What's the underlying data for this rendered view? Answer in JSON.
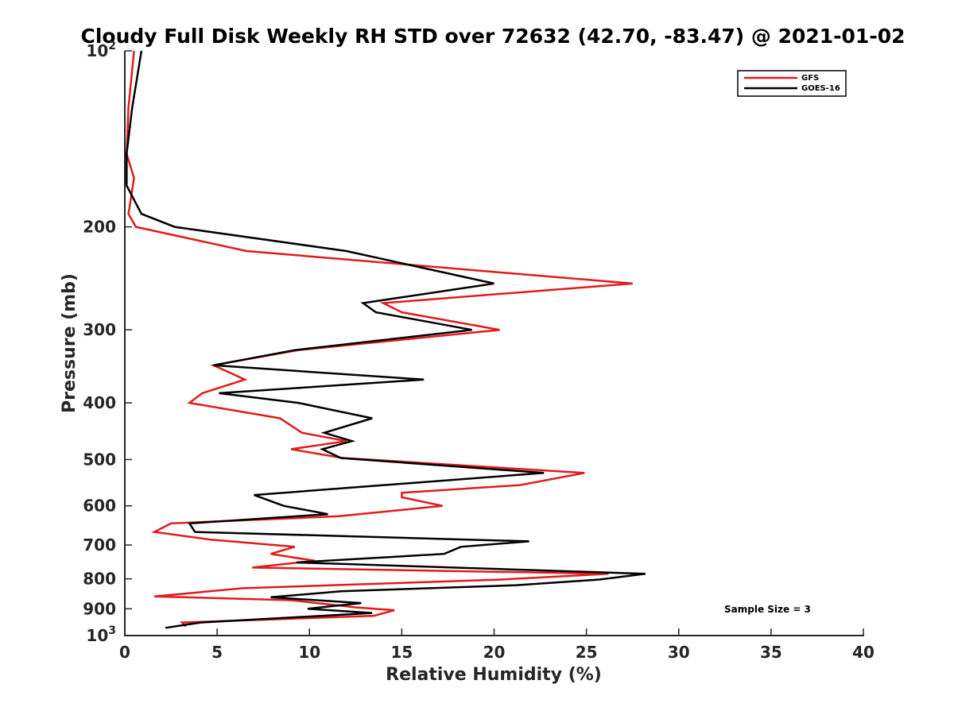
{
  "chart_data": {
    "type": "line",
    "title": "Cloudy Full Disk Weekly RH STD over 72632 (42.70, -83.47) @ 2021-01-02",
    "xlabel": "Relative Humidity (%)",
    "ylabel": "Pressure (mb)",
    "xlim": [
      0,
      40
    ],
    "ylim": [
      100,
      1000
    ],
    "y_scale": "log",
    "y_reversed": true,
    "grid": false,
    "legend_position": "top-right",
    "x_ticks": [
      "0",
      "5",
      "10",
      "15",
      "20",
      "25",
      "30",
      "35",
      "40"
    ],
    "y_ticks": [
      {
        "value": 100,
        "base": "10",
        "exp": "2"
      },
      {
        "value": 200,
        "base": "200",
        "exp": ""
      },
      {
        "value": 300,
        "base": "300",
        "exp": ""
      },
      {
        "value": 400,
        "base": "400",
        "exp": ""
      },
      {
        "value": 500,
        "base": "500",
        "exp": ""
      },
      {
        "value": 600,
        "base": "600",
        "exp": ""
      },
      {
        "value": 700,
        "base": "700",
        "exp": ""
      },
      {
        "value": 800,
        "base": "800",
        "exp": ""
      },
      {
        "value": 900,
        "base": "900",
        "exp": ""
      },
      {
        "value": 1000,
        "base": "10",
        "exp": "3"
      }
    ],
    "series": [
      {
        "name": "GFS",
        "color": "#e31a1c",
        "points": [
          [
            0.5,
            100
          ],
          [
            0.2,
            125
          ],
          [
            0.1,
            150
          ],
          [
            0.5,
            165
          ],
          [
            0.2,
            190
          ],
          [
            0.6,
            200
          ],
          [
            6.6,
            220
          ],
          [
            27.5,
            250
          ],
          [
            14.0,
            270
          ],
          [
            15.0,
            280
          ],
          [
            20.3,
            300
          ],
          [
            9.4,
            325
          ],
          [
            4.8,
            345
          ],
          [
            6.5,
            365
          ],
          [
            4.2,
            385
          ],
          [
            3.5,
            400
          ],
          [
            8.4,
            425
          ],
          [
            9.6,
            450
          ],
          [
            12.0,
            465
          ],
          [
            9.0,
            480
          ],
          [
            11.8,
            497
          ],
          [
            24.9,
            527
          ],
          [
            21.4,
            553
          ],
          [
            15.0,
            570
          ],
          [
            15.0,
            580
          ],
          [
            17.2,
            600
          ],
          [
            11.6,
            625
          ],
          [
            2.5,
            643
          ],
          [
            1.6,
            665
          ],
          [
            4.6,
            685
          ],
          [
            9.2,
            705
          ],
          [
            7.9,
            725
          ],
          [
            10.3,
            745
          ],
          [
            6.9,
            765
          ],
          [
            26.2,
            784
          ],
          [
            20.4,
            802
          ],
          [
            6.4,
            830
          ],
          [
            1.6,
            857
          ],
          [
            9.0,
            870
          ],
          [
            12.5,
            895
          ],
          [
            14.6,
            905
          ],
          [
            13.5,
            925
          ],
          [
            3.1,
            950
          ],
          [
            3.3,
            965
          ]
        ]
      },
      {
        "name": "GOES-16",
        "color": "#000000",
        "points": [
          [
            0.9,
            100
          ],
          [
            0.4,
            125
          ],
          [
            0.1,
            150
          ],
          [
            0.1,
            170
          ],
          [
            0.9,
            190
          ],
          [
            2.7,
            200
          ],
          [
            12.0,
            220
          ],
          [
            20.0,
            250
          ],
          [
            12.9,
            270
          ],
          [
            13.6,
            280
          ],
          [
            18.8,
            300
          ],
          [
            9.2,
            325
          ],
          [
            4.8,
            345
          ],
          [
            16.2,
            365
          ],
          [
            5.1,
            385
          ],
          [
            9.4,
            400
          ],
          [
            13.4,
            425
          ],
          [
            10.8,
            450
          ],
          [
            12.3,
            465
          ],
          [
            10.7,
            480
          ],
          [
            11.7,
            497
          ],
          [
            22.7,
            527
          ],
          [
            7.0,
            575
          ],
          [
            8.6,
            600
          ],
          [
            11.0,
            620
          ],
          [
            3.5,
            643
          ],
          [
            3.8,
            665
          ],
          [
            21.9,
            690
          ],
          [
            18.2,
            705
          ],
          [
            17.3,
            725
          ],
          [
            9.3,
            750
          ],
          [
            28.2,
            784
          ],
          [
            25.7,
            802
          ],
          [
            21.2,
            820
          ],
          [
            11.7,
            840
          ],
          [
            7.9,
            860
          ],
          [
            12.8,
            880
          ],
          [
            9.9,
            900
          ],
          [
            13.4,
            915
          ],
          [
            4.1,
            950
          ],
          [
            2.2,
            970
          ]
        ]
      }
    ],
    "annotation": "Sample Size = 3"
  }
}
